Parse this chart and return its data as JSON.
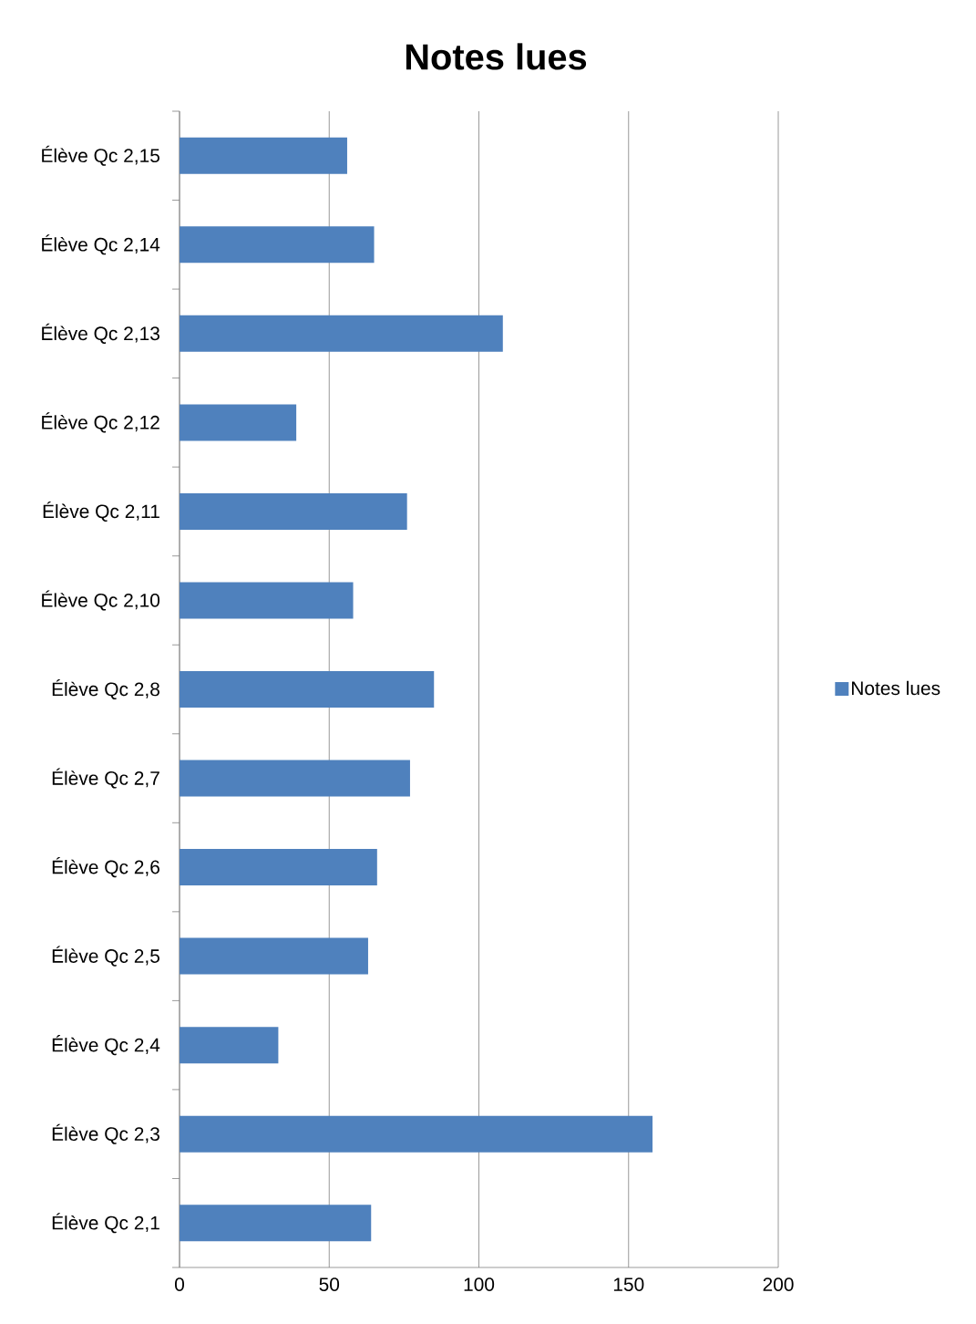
{
  "chart_data": {
    "type": "bar",
    "orientation": "horizontal",
    "title": "Notes lues",
    "categories": [
      "Élève Qc 2,15",
      "Élève Qc 2,14",
      "Élève Qc 2,13",
      "Élève Qc 2,12",
      "Élève Qc 2,11",
      "Élève Qc 2,10",
      "Élève Qc 2,8",
      "Élève Qc 2,7",
      "Élève Qc 2,6",
      "Élève Qc 2,5",
      "Élève Qc 2,4",
      "Élève Qc 2,3",
      "Élève Qc 2,1"
    ],
    "series": [
      {
        "name": "Notes lues",
        "color": "#4f81bd",
        "values": [
          56,
          65,
          108,
          39,
          76,
          58,
          85,
          77,
          66,
          63,
          33,
          158,
          64
        ]
      }
    ],
    "xlim": [
      0,
      200
    ],
    "xticks": [
      0,
      50,
      100,
      150,
      200
    ],
    "grid": "x",
    "legend": "right"
  }
}
